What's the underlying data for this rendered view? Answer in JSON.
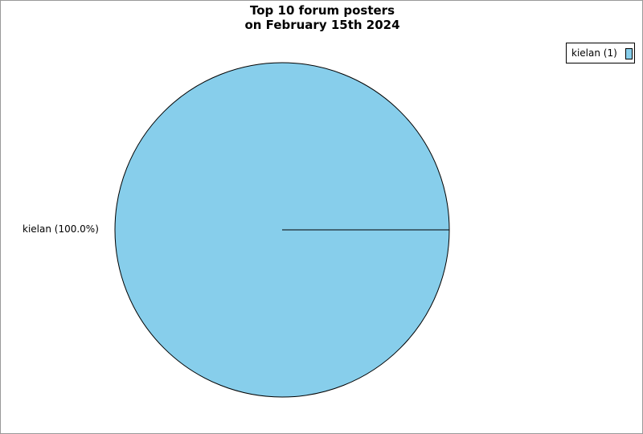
{
  "chart_data": {
    "type": "pie",
    "title_lines": [
      "Top 10 forum posters",
      "on February 15th 2024"
    ],
    "slices": [
      {
        "name": "kielan",
        "value": 1,
        "percent_label": "kielan (100.0%)",
        "legend_label": "kielan (1)",
        "color": "#87ceeb"
      }
    ],
    "legend_placement": "top-right"
  }
}
